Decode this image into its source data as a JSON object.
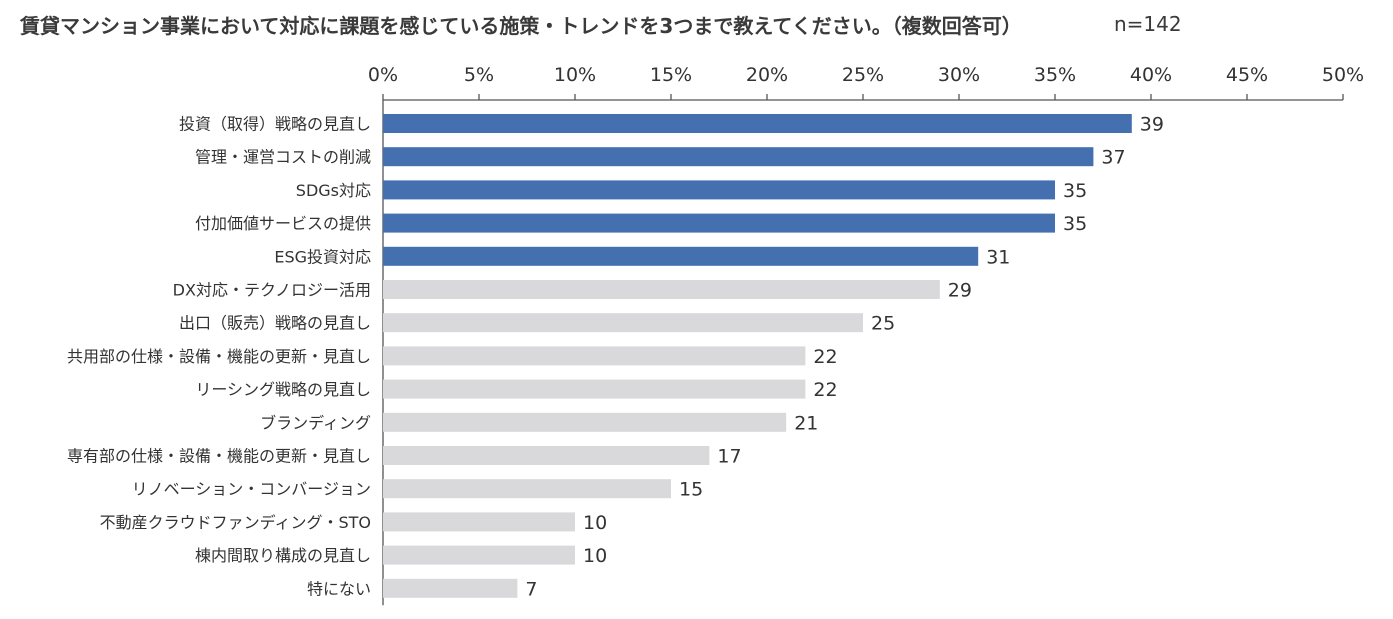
{
  "chart_data": {
    "type": "bar",
    "orientation": "horizontal",
    "title": "賃貸マンション事業において対応に課題を感じている施策・トレンドを3つまで教えてください。（複数回答可）",
    "sample_size_label": "n=142",
    "sample_size": 142,
    "xlim": [
      0,
      50
    ],
    "x_ticks": [
      0,
      5,
      10,
      15,
      20,
      25,
      30,
      35,
      40,
      45,
      50
    ],
    "tick_labels": [
      "0%",
      "5%",
      "10%",
      "15%",
      "20%",
      "25%",
      "30%",
      "35%",
      "40%",
      "45%",
      "50%"
    ],
    "axis_position": "top",
    "grid": false,
    "highlight_color": "#4470b0",
    "base_color": "#d9d9dc",
    "categories": [
      "投資（取得）戦略の見直し",
      "管理・運営コストの削減",
      "SDGs対応",
      "付加価値サービスの提供",
      "ESG投資対応",
      "DX対応・テクノロジー活用",
      "出口（販売）戦略の見直し",
      "共用部の仕様・設備・機能の更新・見直し",
      "リーシング戦略の見直し",
      "ブランディング",
      "専有部の仕様・設備・機能の更新・見直し",
      "リノベーション・コンバージョン",
      "不動産クラウドファンディング・STO",
      "棟内間取り構成の見直し",
      "特にない"
    ],
    "values": [
      39,
      37,
      35,
      35,
      31,
      29,
      25,
      22,
      22,
      21,
      17,
      15,
      10,
      10,
      7
    ],
    "highlighted": [
      true,
      true,
      true,
      true,
      true,
      false,
      false,
      false,
      false,
      false,
      false,
      false,
      false,
      false,
      false
    ]
  }
}
